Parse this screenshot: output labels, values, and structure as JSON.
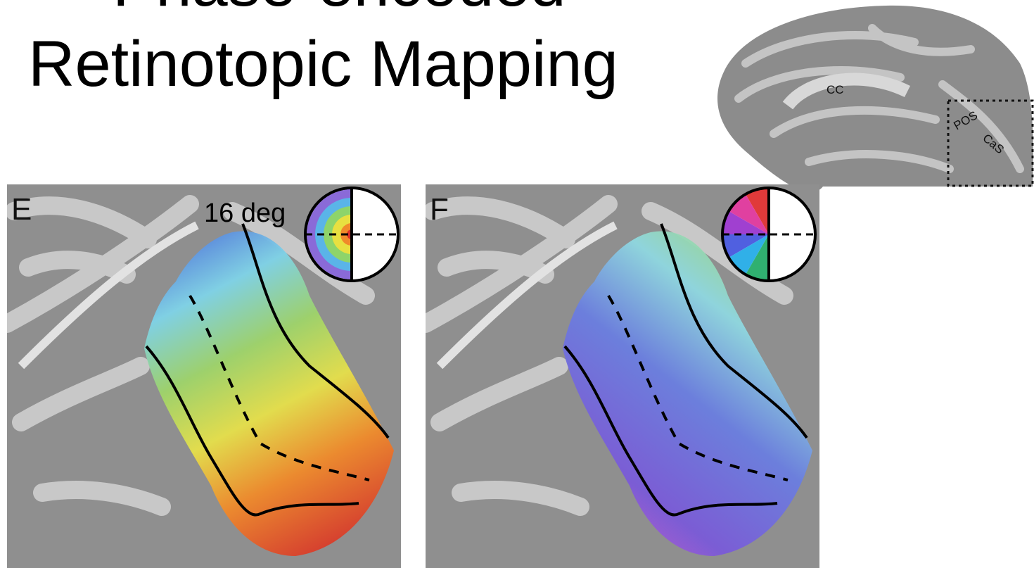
{
  "slide": {
    "title_lines": [
      "Phase-encoded",
      "Retinotopic Mapping"
    ],
    "brain_labels": [
      "CC",
      "POS",
      "CaS"
    ],
    "panels": [
      {
        "label": "E",
        "scale_label": "16 deg"
      },
      {
        "label": "F"
      }
    ]
  }
}
